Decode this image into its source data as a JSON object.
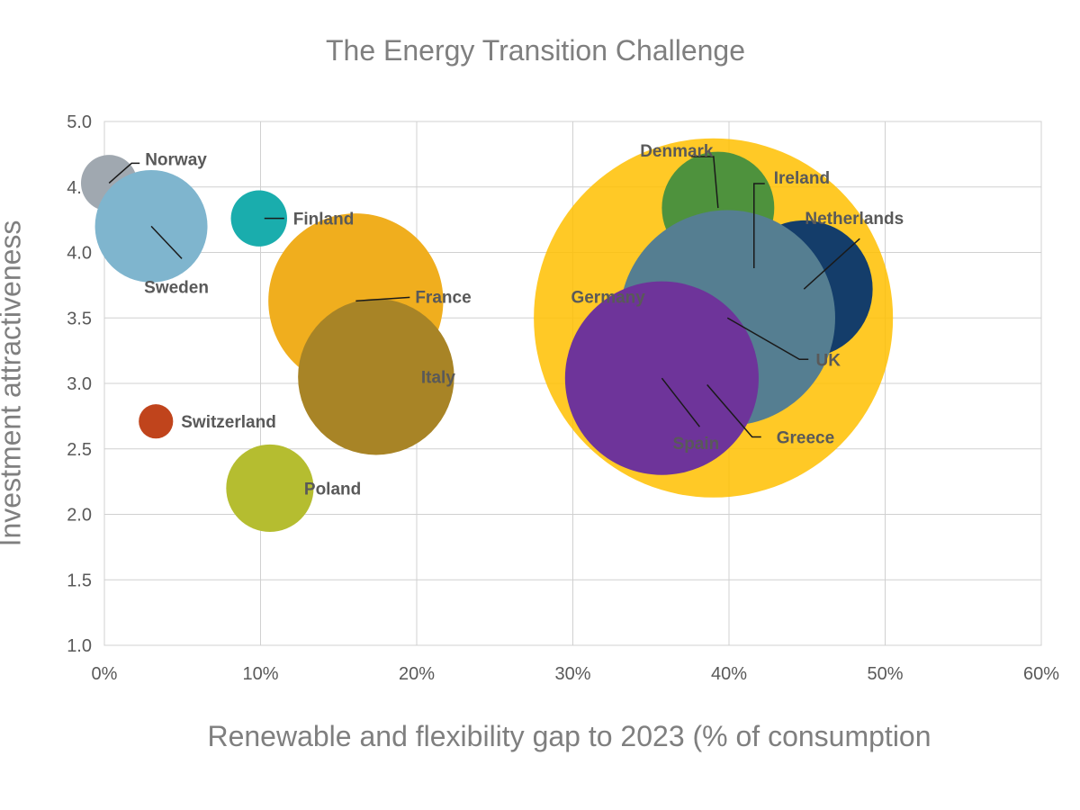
{
  "chart_data": {
    "type": "bubble",
    "title": "The Energy Transition Challenge",
    "xlabel": "Renewable and flexibility gap to 2023 (% of consumption",
    "ylabel": "Investment attractiveness",
    "xlim": [
      0,
      60
    ],
    "ylim": [
      1.0,
      5.0
    ],
    "x_ticks": [
      "0%",
      "10%",
      "20%",
      "30%",
      "40%",
      "50%",
      "60%"
    ],
    "y_ticks": [
      "1.0",
      "1.5",
      "2.0",
      "2.5",
      "3.0",
      "3.5",
      "4.0",
      "4.5",
      "5.0"
    ],
    "grid": true,
    "points": [
      {
        "label": "Germany",
        "x": 39.0,
        "y": 3.5,
        "size": 11.5,
        "color": "#FFC000",
        "opacity": 0.85
      },
      {
        "label": "Norway",
        "x": 0.3,
        "y": 4.53,
        "size": 1.8,
        "color": "#A0A8B0",
        "opacity": 1
      },
      {
        "label": "Sweden",
        "x": 3.0,
        "y": 4.2,
        "size": 3.6,
        "color": "#7FB5CE",
        "opacity": 1
      },
      {
        "label": "Finland",
        "x": 9.9,
        "y": 4.26,
        "size": 1.8,
        "color": "#1AADAD",
        "opacity": 1
      },
      {
        "label": "France",
        "x": 16.1,
        "y": 3.63,
        "size": 5.6,
        "color": "#F0AE1E",
        "opacity": 1
      },
      {
        "label": "Italy",
        "x": 17.4,
        "y": 3.05,
        "size": 5.0,
        "color": "#A88426",
        "opacity": 1
      },
      {
        "label": "Switzerland",
        "x": 3.3,
        "y": 2.71,
        "size": 1.1,
        "color": "#C0441C",
        "opacity": 1
      },
      {
        "label": "Poland",
        "x": 10.6,
        "y": 2.2,
        "size": 2.8,
        "color": "#B5BD30",
        "opacity": 1
      },
      {
        "label": "Denmark",
        "x": 39.3,
        "y": 4.34,
        "size": 3.6,
        "color": "#4E923D",
        "opacity": 1
      },
      {
        "label": "Ireland",
        "x": 41.6,
        "y": 3.88,
        "size": 2.6,
        "color": "#F2E49B",
        "opacity": 1
      },
      {
        "label": "Netherlands",
        "x": 44.8,
        "y": 3.72,
        "size": 4.4,
        "color": "#143D6A",
        "opacity": 1
      },
      {
        "label": "UK",
        "x": 39.9,
        "y": 3.5,
        "size": 6.9,
        "color": "#557E91",
        "opacity": 1
      },
      {
        "label": "Greece",
        "x": 38.6,
        "y": 2.99,
        "size": 2.6,
        "color": "#D92332",
        "opacity": 1
      },
      {
        "label": "Spain",
        "x": 35.7,
        "y": 3.04,
        "size": 6.2,
        "color": "#6E349A",
        "opacity": 1
      }
    ]
  }
}
